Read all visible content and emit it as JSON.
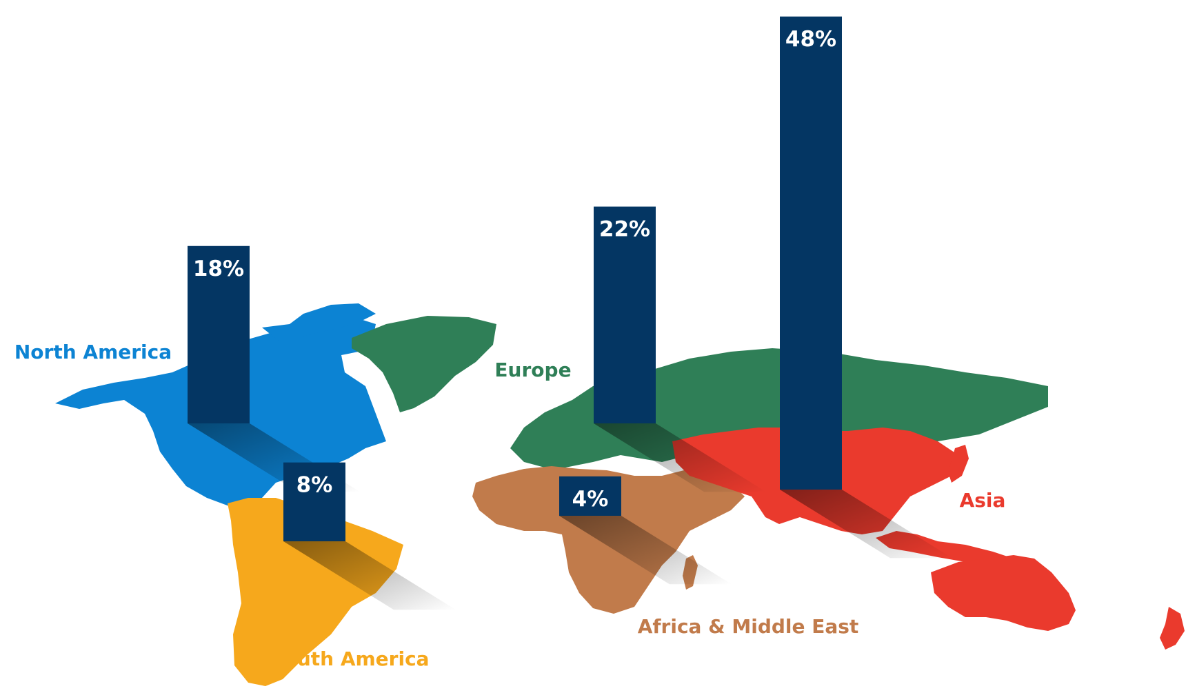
{
  "chart_data": {
    "type": "bar",
    "categories": [
      "North America",
      "South America",
      "Europe",
      "Africa & Middle East",
      "Asia"
    ],
    "values": [
      18,
      8,
      22,
      4,
      48
    ],
    "value_labels": [
      "18%",
      "8%",
      "22%",
      "4%",
      "48%"
    ],
    "title": "",
    "xlabel": "",
    "ylabel": "",
    "ylim": [
      0,
      50
    ],
    "legend": "none",
    "grid": false
  },
  "colors": {
    "bar": "#043663",
    "north_america": "#0c83d3",
    "south_america": "#f6a81c",
    "europe": "#2f7f57",
    "africa_middle_east": "#c17b4b",
    "asia": "#ea3a2d",
    "value_text": "#ffffff"
  }
}
